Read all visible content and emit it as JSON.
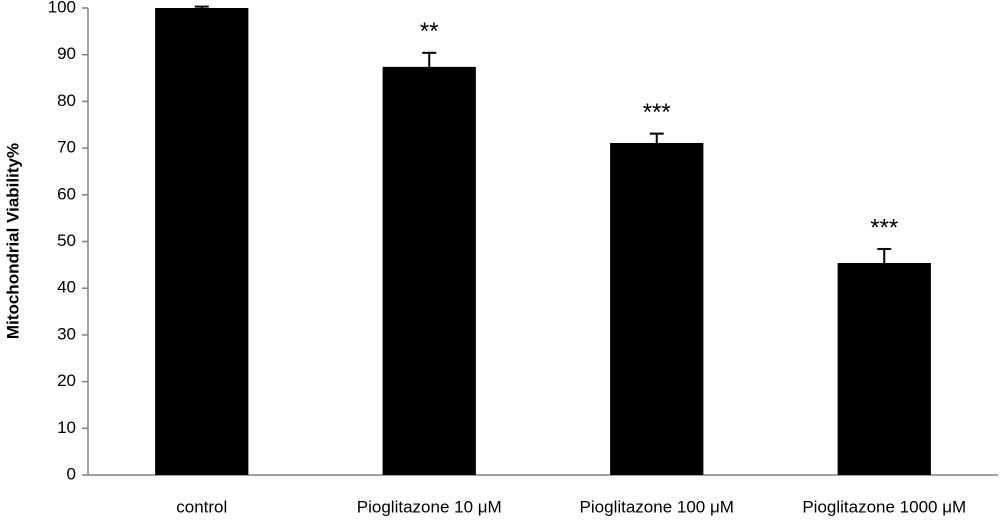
{
  "chart_data": {
    "type": "bar",
    "y_label": "Mitochondrial Viability%",
    "categories": [
      "control",
      "Pioglitazone 10 μM",
      "Pioglitazone 100 μM",
      "Pioglitazone 1000 μM"
    ],
    "values": [
      100,
      87.4,
      71.1,
      45.4
    ],
    "errors": [
      0.3,
      3,
      2,
      3
    ],
    "annotations": [
      null,
      "**",
      "***",
      "***"
    ],
    "color": "#000000",
    "ylim": [
      0,
      100
    ],
    "yticks": [
      0,
      10,
      20,
      30,
      40,
      50,
      60,
      70,
      80,
      90,
      100
    ],
    "grid": false
  }
}
